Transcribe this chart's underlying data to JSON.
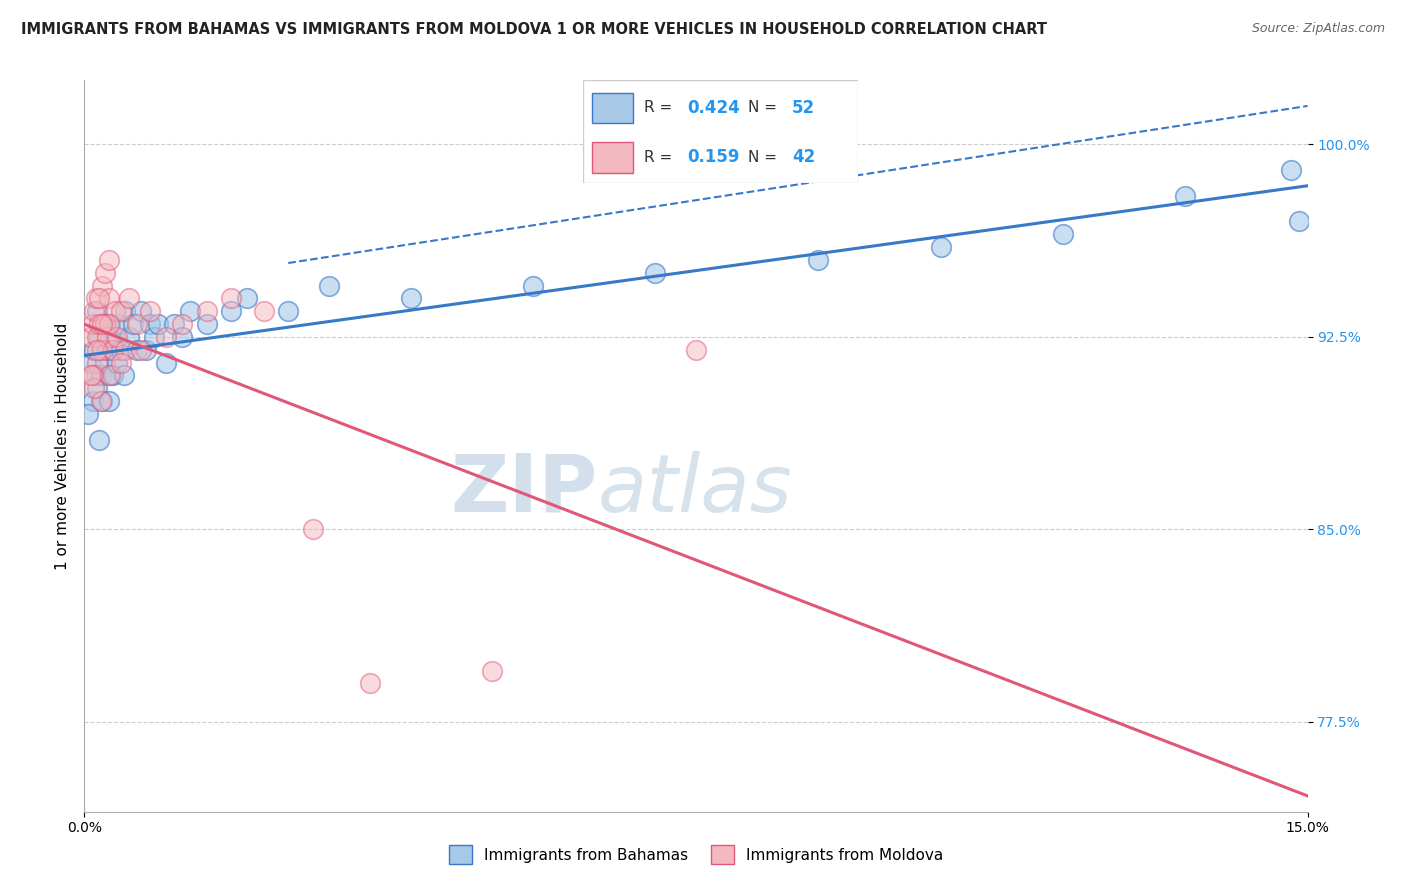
{
  "title": "IMMIGRANTS FROM BAHAMAS VS IMMIGRANTS FROM MOLDOVA 1 OR MORE VEHICLES IN HOUSEHOLD CORRELATION CHART",
  "source": "Source: ZipAtlas.com",
  "ylabel": "1 or more Vehicles in Household",
  "xlim": [
    0.0,
    15.0
  ],
  "ylim": [
    74.0,
    102.5
  ],
  "yticks_right": [
    77.5,
    85.0,
    92.5,
    100.0
  ],
  "legend_r_blue": "0.424",
  "legend_n_blue": "52",
  "legend_r_pink": "0.159",
  "legend_n_pink": "42",
  "blue_color": "#a8c8e8",
  "pink_color": "#f4b8c0",
  "trend_blue": "#3878c8",
  "trend_pink": "#e05878",
  "watermark_zip": "ZIP",
  "watermark_atlas": "atlas",
  "blue_x": [
    0.08,
    0.1,
    0.12,
    0.14,
    0.15,
    0.16,
    0.18,
    0.2,
    0.22,
    0.22,
    0.25,
    0.25,
    0.28,
    0.3,
    0.3,
    0.32,
    0.35,
    0.35,
    0.38,
    0.4,
    0.42,
    0.45,
    0.48,
    0.5,
    0.55,
    0.6,
    0.65,
    0.7,
    0.75,
    0.8,
    0.85,
    0.9,
    1.0,
    1.1,
    1.2,
    1.3,
    1.5,
    1.8,
    2.0,
    2.5,
    3.0,
    4.0,
    5.5,
    7.0,
    9.0,
    10.5,
    12.0,
    13.5,
    14.8,
    14.9,
    0.05,
    0.18
  ],
  "blue_y": [
    91.5,
    90.0,
    92.0,
    91.0,
    93.5,
    90.5,
    92.5,
    91.0,
    92.0,
    90.0,
    93.0,
    91.5,
    92.0,
    91.0,
    90.0,
    93.0,
    92.0,
    91.0,
    92.5,
    91.5,
    93.0,
    92.0,
    91.0,
    93.5,
    92.5,
    93.0,
    92.0,
    93.5,
    92.0,
    93.0,
    92.5,
    93.0,
    91.5,
    93.0,
    92.5,
    93.5,
    93.0,
    93.5,
    94.0,
    93.5,
    94.5,
    94.0,
    94.5,
    95.0,
    95.5,
    96.0,
    96.5,
    98.0,
    99.0,
    97.0,
    89.5,
    88.5
  ],
  "pink_x": [
    0.08,
    0.1,
    0.12,
    0.14,
    0.15,
    0.16,
    0.18,
    0.2,
    0.22,
    0.25,
    0.28,
    0.3,
    0.32,
    0.35,
    0.38,
    0.4,
    0.45,
    0.5,
    0.55,
    0.65,
    0.7,
    0.8,
    1.0,
    1.2,
    1.5,
    1.8,
    2.2,
    2.8,
    3.5,
    5.0,
    7.5,
    0.25,
    0.3,
    0.45,
    0.2,
    0.15,
    0.1,
    0.12,
    0.08,
    0.22,
    0.18,
    0.3
  ],
  "pink_y": [
    92.5,
    93.0,
    93.5,
    94.0,
    92.5,
    91.5,
    93.0,
    92.0,
    94.5,
    93.0,
    92.5,
    94.0,
    91.0,
    92.0,
    93.5,
    92.5,
    93.5,
    92.0,
    94.0,
    93.0,
    92.0,
    93.5,
    92.5,
    93.0,
    93.5,
    94.0,
    93.5,
    85.0,
    79.0,
    79.5,
    92.0,
    95.0,
    93.0,
    91.5,
    90.0,
    92.0,
    91.0,
    90.5,
    91.0,
    93.0,
    94.0,
    95.5
  ]
}
